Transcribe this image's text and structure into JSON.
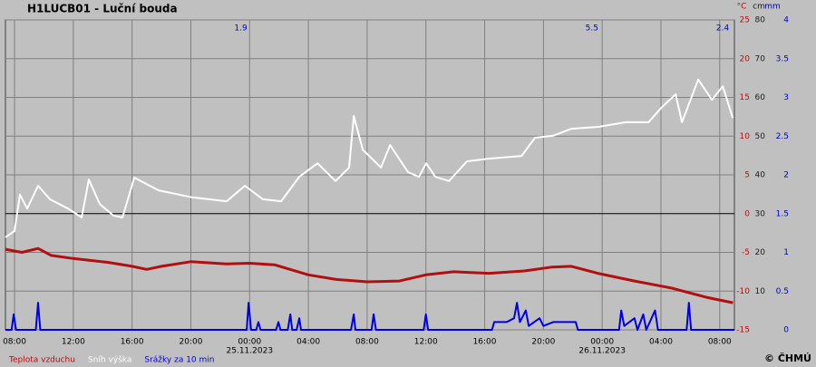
{
  "chart_data": {
    "type": "line",
    "title": "H1LUCB01 - Luční bouda",
    "copyright": "© ČHMÚ",
    "xlim": [
      7.38,
      57.0
    ],
    "xticks": [
      {
        "value": 8,
        "label": "08:00"
      },
      {
        "value": 12,
        "label": "12:00"
      },
      {
        "value": 16,
        "label": "16:00"
      },
      {
        "value": 20,
        "label": "20:00"
      },
      {
        "value": 24,
        "label": "00:00"
      },
      {
        "value": 28,
        "label": "04:00"
      },
      {
        "value": 32,
        "label": "08:00"
      },
      {
        "value": 36,
        "label": "12:00"
      },
      {
        "value": 40,
        "label": "16:00"
      },
      {
        "value": 44,
        "label": "20:00"
      },
      {
        "value": 48,
        "label": "00:00"
      },
      {
        "value": 52,
        "label": "04:00"
      },
      {
        "value": 56,
        "label": "08:00"
      }
    ],
    "date_labels": [
      {
        "value": 24,
        "label": "25.11.2023"
      },
      {
        "value": 48,
        "label": "26.11.2023"
      }
    ],
    "ylim": [
      -15,
      25
    ],
    "yticks": [
      25,
      20,
      15,
      10,
      5,
      0,
      -5,
      -10,
      -15
    ],
    "y_unit": "°C",
    "y2lim": [
      0,
      80
    ],
    "y2ticks": [
      80,
      70,
      60,
      50,
      40,
      30,
      20,
      10
    ],
    "y2_unit": "cm",
    "y3lim": [
      0,
      4
    ],
    "y3ticks": [
      4,
      3.5,
      3,
      2.5,
      2,
      1.5,
      1,
      0.5,
      0
    ],
    "y3_unit": "mm",
    "grid": true,
    "daily_totals": [
      {
        "x": 23.4,
        "value": 1.9
      },
      {
        "x": 47.3,
        "value": 5.5
      },
      {
        "x": 56.2,
        "value": 2.4
      }
    ],
    "series": [
      {
        "name": "Teplota vzduchu",
        "color": "#b01010",
        "axis": "y",
        "width": 3,
        "x": [
          7.38,
          8.5,
          9.6,
          10.5,
          12,
          14.4,
          16,
          17,
          18,
          20,
          22.4,
          24,
          25.7,
          28,
          29.9,
          32,
          34.2,
          36,
          37.9,
          40.3,
          42.7,
          44.6,
          45.9,
          47.7,
          50.2,
          52.7,
          55.1,
          56.9
        ],
        "values": [
          -4.6,
          -5.0,
          -4.5,
          -5.4,
          -5.8,
          -6.3,
          -6.8,
          -7.2,
          -6.8,
          -6.2,
          -6.5,
          -6.4,
          -6.6,
          -7.9,
          -8.5,
          -8.8,
          -8.7,
          -7.9,
          -7.5,
          -7.7,
          -7.4,
          -6.9,
          -6.8,
          -7.7,
          -8.7,
          -9.6,
          -10.8,
          -11.5
        ]
      },
      {
        "name": "Sníh výška",
        "color": "#ffffff",
        "axis": "y2",
        "width": 2,
        "x": [
          7.38,
          8.0,
          8.37,
          8.86,
          9.6,
          10.41,
          11.64,
          12.57,
          13.06,
          13.8,
          14.73,
          15.35,
          16.15,
          17.81,
          20.1,
          22.44,
          23.68,
          24.91,
          26.15,
          27.38,
          28.62,
          29.85,
          30.77,
          31.09,
          31.7,
          32.94,
          33.56,
          34.79,
          35.53,
          36.02,
          36.64,
          37.57,
          38.8,
          40.35,
          42.51,
          43.43,
          44.67,
          45.9,
          47.75,
          49.6,
          51.15,
          52.07,
          53.0,
          53.43,
          54.54,
          55.47,
          56.21,
          56.89
        ],
        "values": [
          23.9,
          25.5,
          34.9,
          31.3,
          37.2,
          33.7,
          31.3,
          29,
          38.8,
          32.5,
          29.5,
          29,
          39.3,
          36,
          34.2,
          33.2,
          37.2,
          33.7,
          33.2,
          39.5,
          43,
          38.4,
          41.9,
          55.2,
          46.5,
          41.9,
          47.7,
          40.7,
          39.5,
          43,
          39.5,
          38.4,
          43.5,
          44.2,
          44.9,
          49.6,
          50.1,
          51.9,
          52.4,
          53.6,
          53.6,
          57.5,
          60.8,
          53.6,
          64.6,
          59.4,
          62.9,
          54.7
        ]
      },
      {
        "name": "Srážky za 10 min",
        "color": "#0000e0",
        "axis": "y3",
        "width": 2,
        "x": [
          7.38,
          7.8,
          7.94,
          8.1,
          9.45,
          9.6,
          9.75,
          23.8,
          23.93,
          24.1,
          24.45,
          24.6,
          24.75,
          25.8,
          25.96,
          26.1,
          26.6,
          26.77,
          26.9,
          27.2,
          27.38,
          27.5,
          30.9,
          31.09,
          31.2,
          32.3,
          32.44,
          32.6,
          35.85,
          36.0,
          36.15,
          40.5,
          40.65,
          41.5,
          42.0,
          42.2,
          42.4,
          42.8,
          43.0,
          43.74,
          44.0,
          44.67,
          45.5,
          46.2,
          46.35,
          49.15,
          49.3,
          49.5,
          50.2,
          50.4,
          50.8,
          51.0,
          51.6,
          51.8,
          53.75,
          53.9,
          54.05,
          57.0
        ],
        "values": [
          0,
          0,
          0.2,
          0,
          0,
          0.35,
          0,
          0,
          0.35,
          0,
          0,
          0.1,
          0,
          0,
          0.1,
          0,
          0,
          0.2,
          0,
          0,
          0.15,
          0,
          0,
          0.2,
          0,
          0,
          0.2,
          0,
          0,
          0.2,
          0,
          0,
          0.1,
          0.1,
          0.15,
          0.35,
          0.1,
          0.25,
          0.05,
          0.15,
          0.05,
          0.1,
          0.1,
          0.1,
          0,
          0,
          0.25,
          0.05,
          0.15,
          0,
          0.2,
          0,
          0.25,
          0,
          0,
          0.35,
          0,
          0
        ]
      }
    ]
  }
}
